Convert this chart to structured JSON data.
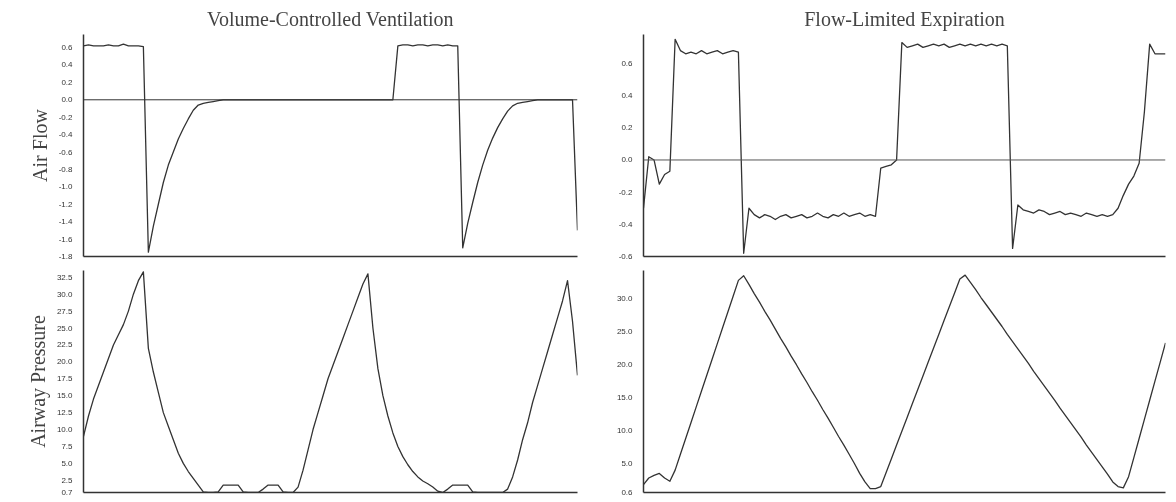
{
  "chart_data": [
    {
      "type": "line",
      "title": "Volume-Controlled Ventilation",
      "ylabel": "Air Flow",
      "categories": [
        null,
        null,
        null,
        null,
        null,
        null,
        null,
        null,
        null,
        null,
        null,
        null,
        null,
        null,
        null,
        null,
        null,
        null,
        null,
        null,
        null,
        null,
        null,
        null,
        null,
        null,
        null,
        null,
        null,
        null,
        null,
        null,
        null,
        null,
        null,
        null,
        null,
        null,
        null,
        null,
        null,
        null,
        null,
        null,
        null,
        null,
        null,
        null,
        null,
        null,
        null,
        null,
        null,
        null,
        null,
        null,
        null,
        null,
        null,
        null,
        null,
        null,
        null,
        null,
        null,
        null,
        null,
        null,
        null,
        null,
        null,
        null,
        null,
        null,
        null,
        null,
        null,
        null,
        null,
        null,
        null,
        null,
        null,
        null,
        null,
        null,
        null,
        null,
        null,
        null,
        null,
        null,
        null,
        null,
        null,
        null,
        null,
        null,
        null,
        null
      ],
      "series": [
        {
          "color": "#333333",
          "values": [
            0.62,
            0.63,
            0.62,
            0.62,
            0.62,
            0.63,
            0.62,
            0.62,
            0.64,
            0.62,
            0.62,
            0.62,
            0.61,
            -1.75,
            -1.45,
            -1.2,
            -0.95,
            -0.75,
            -0.6,
            -0.45,
            -0.33,
            -0.22,
            -0.12,
            -0.06,
            -0.04,
            -0.03,
            -0.02,
            -0.01,
            0,
            0,
            0,
            0,
            0,
            0,
            0,
            0,
            0,
            0,
            0,
            0,
            0,
            0,
            0,
            0,
            0,
            0,
            0,
            0,
            0,
            0,
            0,
            0,
            0,
            0,
            0,
            0,
            0,
            0,
            0,
            0,
            0,
            0,
            0,
            0.62,
            0.63,
            0.63,
            0.62,
            0.63,
            0.63,
            0.62,
            0.63,
            0.63,
            0.62,
            0.63,
            0.62,
            0.62,
            -1.7,
            -1.42,
            -1.18,
            -0.95,
            -0.75,
            -0.58,
            -0.44,
            -0.32,
            -0.22,
            -0.13,
            -0.07,
            -0.04,
            -0.03,
            -0.02,
            -0.01,
            0,
            0,
            0,
            0,
            0,
            0,
            0,
            0,
            -1.5
          ]
        }
      ],
      "ylim": [
        -1.8,
        0.75
      ],
      "yticks": [
        {
          "value": 0.6,
          "label": "0.6"
        },
        {
          "value": 0.4,
          "label": "0.4"
        },
        {
          "value": 0.2,
          "label": "0.2"
        },
        {
          "value": 0,
          "label": "0.0"
        },
        {
          "value": -0.2,
          "label": "-0.2"
        },
        {
          "value": -0.4,
          "label": "-0.4"
        },
        {
          "value": -0.6,
          "label": "-0.6"
        },
        {
          "value": -0.8,
          "label": "-0.8"
        },
        {
          "value": -1.0,
          "label": "-1.0"
        },
        {
          "value": -1.2,
          "label": "-1.2"
        },
        {
          "value": -1.4,
          "label": "-1.4"
        },
        {
          "value": -1.6,
          "label": "-1.6"
        },
        {
          "value": -1.8,
          "label": "-1.8"
        }
      ],
      "ref_lines": [
        {
          "axis": "y",
          "value": 0,
          "color": "#333333"
        }
      ],
      "tick_labels": "y",
      "grid": false
    },
    {
      "type": "line",
      "title": "Flow-Limited Expiration",
      "categories": [
        null,
        null,
        null,
        null,
        null,
        null,
        null,
        null,
        null,
        null,
        null,
        null,
        null,
        null,
        null,
        null,
        null,
        null,
        null,
        null,
        null,
        null,
        null,
        null,
        null,
        null,
        null,
        null,
        null,
        null,
        null,
        null,
        null,
        null,
        null,
        null,
        null,
        null,
        null,
        null,
        null,
        null,
        null,
        null,
        null,
        null,
        null,
        null,
        null,
        null,
        null,
        null,
        null,
        null,
        null,
        null,
        null,
        null,
        null,
        null,
        null,
        null,
        null,
        null,
        null,
        null,
        null,
        null,
        null,
        null,
        null,
        null,
        null,
        null,
        null,
        null,
        null,
        null,
        null,
        null,
        null,
        null,
        null,
        null,
        null,
        null,
        null,
        null,
        null,
        null,
        null,
        null,
        null,
        null,
        null,
        null,
        null,
        null,
        null,
        null
      ],
      "series": [
        {
          "color": "#333333",
          "values": [
            -0.3,
            0.02,
            0.0,
            -0.15,
            -0.09,
            -0.07,
            0.75,
            0.68,
            0.66,
            0.67,
            0.66,
            0.68,
            0.66,
            0.67,
            0.68,
            0.66,
            0.67,
            0.68,
            0.67,
            -0.58,
            -0.3,
            -0.34,
            -0.36,
            -0.34,
            -0.35,
            -0.37,
            -0.35,
            -0.34,
            -0.36,
            -0.35,
            -0.34,
            -0.36,
            -0.35,
            -0.33,
            -0.35,
            -0.36,
            -0.34,
            -0.35,
            -0.33,
            -0.35,
            -0.34,
            -0.33,
            -0.35,
            -0.34,
            -0.35,
            -0.05,
            -0.04,
            -0.03,
            0.0,
            0.73,
            0.7,
            0.71,
            0.72,
            0.7,
            0.71,
            0.72,
            0.71,
            0.72,
            0.7,
            0.71,
            0.72,
            0.71,
            0.72,
            0.71,
            0.72,
            0.71,
            0.72,
            0.71,
            0.72,
            0.71,
            -0.55,
            -0.28,
            -0.31,
            -0.32,
            -0.33,
            -0.31,
            -0.32,
            -0.34,
            -0.33,
            -0.32,
            -0.34,
            -0.33,
            -0.34,
            -0.35,
            -0.33,
            -0.34,
            -0.35,
            -0.34,
            -0.35,
            -0.34,
            -0.3,
            -0.22,
            -0.15,
            -0.1,
            -0.02,
            0.3,
            0.72,
            0.66,
            0.66,
            0.66
          ]
        }
      ],
      "ylim": [
        -0.6,
        0.78
      ],
      "yticks": [
        {
          "value": 0.6,
          "label": "0.6"
        },
        {
          "value": 0.4,
          "label": "0.4"
        },
        {
          "value": 0.2,
          "label": "0.2"
        },
        {
          "value": 0,
          "label": "0.0"
        },
        {
          "value": -0.2,
          "label": "-0.2"
        },
        {
          "value": -0.4,
          "label": "-0.4"
        },
        {
          "value": -0.6,
          "label": "-0.6"
        }
      ],
      "ref_lines": [
        {
          "axis": "y",
          "value": 0,
          "color": "#555555"
        }
      ],
      "tick_labels": "y",
      "grid": false
    },
    {
      "type": "line",
      "ylabel": "Airway Pressure",
      "categories": [
        null,
        null,
        null,
        null,
        null,
        null,
        null,
        null,
        null,
        null,
        null,
        null,
        null,
        null,
        null,
        null,
        null,
        null,
        null,
        null,
        null,
        null,
        null,
        null,
        null,
        null,
        null,
        null,
        null,
        null,
        null,
        null,
        null,
        null,
        null,
        null,
        null,
        null,
        null,
        null,
        null,
        null,
        null,
        null,
        null,
        null,
        null,
        null,
        null,
        null,
        null,
        null,
        null,
        null,
        null,
        null,
        null,
        null,
        null,
        null,
        null,
        null,
        null,
        null,
        null,
        null,
        null,
        null,
        null,
        null,
        null,
        null,
        null,
        null,
        null,
        null,
        null,
        null,
        null,
        null,
        null,
        null,
        null,
        null,
        null,
        null,
        null,
        null,
        null,
        null,
        null,
        null,
        null,
        null,
        null,
        null,
        null,
        null,
        null,
        null
      ],
      "series": [
        {
          "color": "#333333",
          "values": [
            9,
            12,
            14.5,
            16.5,
            18.5,
            20.5,
            22.5,
            24,
            25.5,
            27.5,
            30,
            32,
            33.3,
            22,
            18.5,
            15.5,
            12.5,
            10.5,
            8.5,
            6.5,
            5,
            3.8,
            2.8,
            1.8,
            0.8,
            0.7,
            0.7,
            0.8,
            1.8,
            1.8,
            1.8,
            1.8,
            0.8,
            0.7,
            0.7,
            0.7,
            1.2,
            1.8,
            1.8,
            1.8,
            0.8,
            0.7,
            0.7,
            1.5,
            4,
            7,
            10,
            12.5,
            15,
            17.5,
            19.5,
            21.5,
            23.5,
            25.5,
            27.5,
            29.5,
            31.5,
            33,
            25,
            19,
            15,
            12,
            9.5,
            7.5,
            6,
            4.8,
            3.8,
            3,
            2.4,
            2,
            1.5,
            0.9,
            0.7,
            1.2,
            1.8,
            1.8,
            1.8,
            1.8,
            0.8,
            0.7,
            0.7,
            0.7,
            0.7,
            0.7,
            0.7,
            1.2,
            3,
            5.5,
            8.5,
            11,
            14,
            16.5,
            19,
            21.5,
            24,
            26.5,
            29,
            32,
            26,
            18
          ]
        }
      ],
      "ylim": [
        0.7,
        33.5
      ],
      "yticks": [
        {
          "value": 32.5,
          "label": "32.5"
        },
        {
          "value": 30,
          "label": "30.0"
        },
        {
          "value": 27.5,
          "label": "27.5"
        },
        {
          "value": 25,
          "label": "25.0"
        },
        {
          "value": 22.5,
          "label": "22.5"
        },
        {
          "value": 20,
          "label": "20.0"
        },
        {
          "value": 17.5,
          "label": "17.5"
        },
        {
          "value": 15,
          "label": "15.0"
        },
        {
          "value": 12.5,
          "label": "12.5"
        },
        {
          "value": 10,
          "label": "10.0"
        },
        {
          "value": 7.5,
          "label": "7.5"
        },
        {
          "value": 5,
          "label": "5.0"
        },
        {
          "value": 2.5,
          "label": "2.5"
        },
        {
          "value": 0.7,
          "label": "0.7"
        }
      ],
      "tick_labels": "y",
      "grid": false
    },
    {
      "type": "line",
      "categories": [
        null,
        null,
        null,
        null,
        null,
        null,
        null,
        null,
        null,
        null,
        null,
        null,
        null,
        null,
        null,
        null,
        null,
        null,
        null,
        null,
        null,
        null,
        null,
        null,
        null,
        null,
        null,
        null,
        null,
        null,
        null,
        null,
        null,
        null,
        null,
        null,
        null,
        null,
        null,
        null,
        null,
        null,
        null,
        null,
        null,
        null,
        null,
        null,
        null,
        null,
        null,
        null,
        null,
        null,
        null,
        null,
        null,
        null,
        null,
        null,
        null,
        null,
        null,
        null,
        null,
        null,
        null,
        null,
        null,
        null,
        null,
        null,
        null,
        null,
        null,
        null,
        null,
        null,
        null,
        null,
        null,
        null,
        null,
        null,
        null,
        null,
        null,
        null,
        null,
        null,
        null,
        null,
        null,
        null,
        null,
        null,
        null,
        null,
        null,
        null
      ],
      "series": [
        {
          "color": "#333333",
          "values": [
            1.8,
            2.8,
            3.2,
            3.5,
            2.8,
            2.3,
            4,
            6.4,
            8.8,
            11.2,
            13.6,
            16,
            18.4,
            20.8,
            23.2,
            25.6,
            28,
            30.4,
            32.8,
            33.5,
            32.2,
            30.8,
            29.5,
            28.1,
            26.8,
            25.4,
            24,
            22.7,
            21.3,
            20,
            18.6,
            17.3,
            15.9,
            14.6,
            13.2,
            11.9,
            10.5,
            9.1,
            7.8,
            6.4,
            5,
            3.5,
            2.2,
            1.2,
            1.2,
            1.5,
            3.6,
            5.7,
            7.8,
            9.9,
            12,
            14.1,
            16.2,
            18.3,
            20.4,
            22.5,
            24.6,
            26.7,
            28.8,
            30.9,
            33,
            33.6,
            32.5,
            31.4,
            30.2,
            29.1,
            28,
            26.9,
            25.8,
            24.6,
            23.5,
            22.4,
            21.3,
            20.2,
            19,
            17.9,
            16.8,
            15.7,
            14.6,
            13.4,
            12.3,
            11.2,
            10.1,
            9,
            7.8,
            6.7,
            5.6,
            4.5,
            3.4,
            2.2,
            1.5,
            1.3,
            3,
            5.9,
            8.8,
            11.7,
            14.6,
            17.5,
            20.4,
            23.3
          ]
        }
      ],
      "ylim": [
        0.6,
        34.3
      ],
      "yticks": [
        {
          "value": 30,
          "label": "30.0"
        },
        {
          "value": 25,
          "label": "25.0"
        },
        {
          "value": 20,
          "label": "20.0"
        },
        {
          "value": 15,
          "label": "15.0"
        },
        {
          "value": 10,
          "label": "10.0"
        },
        {
          "value": 5,
          "label": "5.0"
        },
        {
          "value": 0.6,
          "label": "0.6"
        }
      ],
      "tick_labels": "y",
      "grid": false
    }
  ]
}
